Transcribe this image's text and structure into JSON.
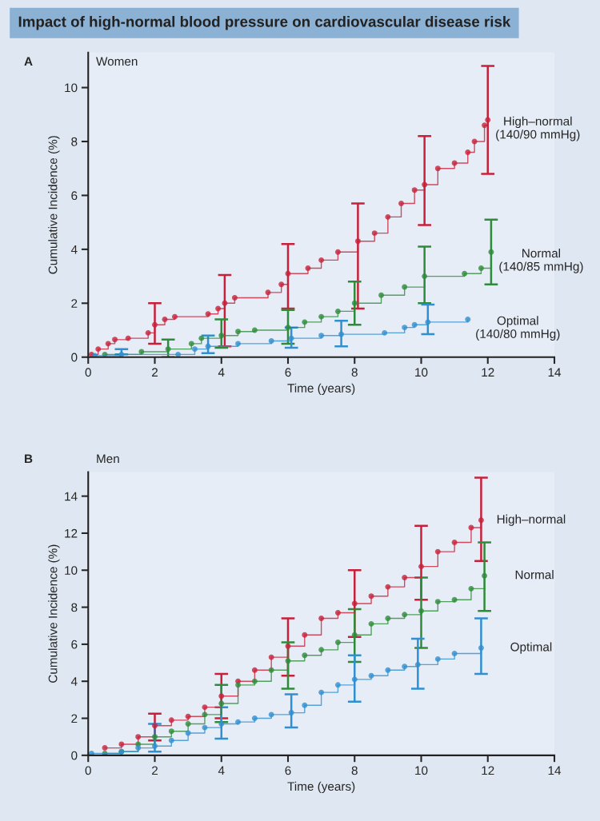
{
  "chart_data": [
    {
      "type": "step",
      "title": "Impact of high-normal blood pressure on cardiovascular disease risk",
      "subtitle": "Women",
      "annotations": [
        "A"
      ],
      "xlabel": "Time (years)",
      "ylabel": "Cumulative Incidence (%)",
      "xlim": [
        0,
        14
      ],
      "xticks": [
        0,
        2,
        4,
        6,
        8,
        10,
        12,
        14
      ],
      "ylim": [
        0,
        11.3
      ],
      "yticks": [
        0,
        2,
        4,
        6,
        8,
        10
      ],
      "grid": false,
      "legend": false,
      "marker": "circle",
      "line_style": "solid",
      "series": [
        {
          "name": "High–normal\n(140/90 mmHg)",
          "color": "#c8203a",
          "x": [
            0.1,
            0.3,
            0.6,
            0.8,
            1.2,
            1.8,
            2.0,
            2.3,
            2.6,
            3.6,
            3.9,
            4.1,
            4.4,
            5.4,
            5.8,
            6.0,
            6.6,
            7.0,
            7.5,
            8.1,
            8.6,
            9.0,
            9.4,
            9.8,
            10.1,
            10.5,
            11.0,
            11.4,
            11.6,
            11.9,
            12.0
          ],
          "values": [
            0.1,
            0.3,
            0.5,
            0.65,
            0.7,
            0.9,
            1.2,
            1.4,
            1.5,
            1.6,
            1.8,
            2.0,
            2.2,
            2.4,
            2.7,
            3.1,
            3.3,
            3.6,
            3.9,
            4.3,
            4.6,
            5.2,
            5.7,
            6.2,
            6.4,
            7.0,
            7.2,
            7.6,
            8.0,
            8.6,
            8.8
          ],
          "errors": [
            null,
            null,
            null,
            null,
            null,
            null,
            [
              0.5,
              2.0
            ],
            null,
            null,
            null,
            null,
            [
              0.4,
              3.05
            ],
            null,
            null,
            null,
            [
              1.8,
              4.2
            ],
            null,
            null,
            null,
            [
              1.8,
              5.7
            ],
            null,
            null,
            null,
            null,
            [
              4.9,
              8.2
            ],
            null,
            null,
            null,
            null,
            null,
            [
              6.8,
              10.8
            ]
          ]
        },
        {
          "name": "Normal\n(140/85 mmHg)",
          "color": "#2e8b3a",
          "x": [
            0.5,
            1.6,
            2.4,
            3.1,
            3.4,
            4.0,
            4.5,
            5.0,
            6.0,
            6.5,
            7.0,
            7.5,
            8.0,
            8.8,
            9.5,
            10.1,
            11.3,
            11.8,
            12.1
          ],
          "values": [
            0.1,
            0.2,
            0.3,
            0.5,
            0.7,
            0.8,
            0.95,
            1.0,
            1.1,
            1.3,
            1.5,
            1.7,
            2.0,
            2.3,
            2.6,
            3.0,
            3.1,
            3.3,
            3.9
          ],
          "errors": [
            null,
            null,
            [
              0.0,
              0.65
            ],
            null,
            null,
            [
              0.35,
              1.4
            ],
            null,
            null,
            [
              0.5,
              1.75
            ],
            null,
            null,
            null,
            [
              1.2,
              2.8
            ],
            null,
            null,
            [
              2.0,
              4.1
            ],
            null,
            null,
            [
              2.7,
              5.1
            ]
          ]
        },
        {
          "name": "Optimal\n(140/80 mmHg)",
          "color": "#2f8fd0",
          "x": [
            0.2,
            1.0,
            2.7,
            3.2,
            3.6,
            4.5,
            5.5,
            6.1,
            7.0,
            7.6,
            8.9,
            9.5,
            9.8,
            10.2,
            11.4
          ],
          "values": [
            0.05,
            0.1,
            0.1,
            0.3,
            0.4,
            0.5,
            0.6,
            0.7,
            0.8,
            0.85,
            0.9,
            1.1,
            1.2,
            1.3,
            1.4
          ],
          "errors": [
            null,
            [
              0.1,
              0.3
            ],
            null,
            null,
            [
              0.15,
              0.8
            ],
            null,
            null,
            [
              0.35,
              1.1
            ],
            null,
            [
              0.4,
              1.35
            ],
            null,
            null,
            null,
            [
              0.85,
              1.95
            ],
            null
          ]
        }
      ]
    },
    {
      "type": "step",
      "subtitle": "Men",
      "annotations": [
        "B"
      ],
      "xlabel": "Time (years)",
      "ylabel": "Cumulative Incidence (%)",
      "xlim": [
        0,
        14
      ],
      "xticks": [
        0,
        2,
        4,
        6,
        8,
        10,
        12,
        14
      ],
      "ylim": [
        0,
        15.3
      ],
      "yticks": [
        0,
        2,
        4,
        6,
        8,
        10,
        12,
        14
      ],
      "grid": false,
      "legend": false,
      "marker": "circle",
      "line_style": "solid",
      "series": [
        {
          "name": "High–normal",
          "color": "#c8203a",
          "x": [
            0.5,
            1.0,
            1.5,
            2.0,
            2.5,
            3.0,
            3.5,
            4.0,
            4.5,
            5.0,
            5.5,
            6.0,
            6.5,
            7.0,
            7.5,
            8.0,
            8.5,
            9.0,
            9.5,
            10.0,
            10.5,
            11.0,
            11.5,
            11.8
          ],
          "values": [
            0.4,
            0.6,
            1.0,
            1.6,
            1.9,
            2.1,
            2.6,
            3.2,
            4.0,
            4.6,
            5.3,
            5.9,
            6.5,
            7.4,
            7.7,
            8.2,
            8.6,
            9.1,
            9.6,
            10.2,
            11.0,
            11.5,
            12.3,
            12.7
          ],
          "errors": [
            null,
            null,
            null,
            [
              0.8,
              2.25
            ],
            null,
            null,
            null,
            [
              2.0,
              4.4
            ],
            null,
            null,
            null,
            [
              4.3,
              7.4
            ],
            null,
            null,
            null,
            [
              6.4,
              10.0
            ],
            null,
            null,
            null,
            [
              8.4,
              12.4
            ],
            null,
            null,
            null,
            [
              10.5,
              15.0
            ]
          ]
        },
        {
          "name": "Normal",
          "color": "#2e8b3a",
          "x": [
            0.5,
            1.0,
            1.5,
            2.0,
            2.5,
            3.0,
            3.5,
            4.0,
            4.5,
            5.0,
            5.5,
            6.0,
            6.5,
            7.0,
            7.5,
            8.0,
            8.5,
            9.0,
            9.5,
            10.0,
            10.5,
            11.0,
            11.5,
            11.9
          ],
          "values": [
            0.1,
            0.2,
            0.6,
            1.0,
            1.3,
            1.7,
            2.2,
            2.8,
            3.8,
            4.0,
            4.6,
            5.1,
            5.4,
            5.7,
            6.1,
            6.5,
            7.1,
            7.4,
            7.6,
            7.8,
            8.3,
            8.4,
            9.0,
            9.7
          ],
          "errors": [
            null,
            null,
            null,
            null,
            null,
            null,
            null,
            [
              1.8,
              3.8
            ],
            null,
            null,
            null,
            [
              3.6,
              6.1
            ],
            null,
            null,
            null,
            [
              5.05,
              7.9
            ],
            null,
            null,
            null,
            [
              5.8,
              9.6
            ],
            null,
            null,
            null,
            [
              7.8,
              11.5
            ]
          ]
        },
        {
          "name": "Optimal",
          "color": "#2f8fd0",
          "x": [
            0.1,
            1.0,
            1.5,
            2.0,
            2.5,
            3.0,
            3.5,
            4.0,
            4.5,
            5.0,
            5.5,
            6.1,
            6.5,
            7.0,
            7.5,
            8.0,
            8.5,
            9.0,
            9.5,
            9.9,
            10.5,
            11.0,
            11.8
          ],
          "values": [
            0.1,
            0.2,
            0.4,
            0.5,
            0.8,
            1.2,
            1.5,
            1.7,
            1.8,
            2.0,
            2.2,
            2.3,
            2.7,
            3.4,
            3.8,
            4.1,
            4.3,
            4.6,
            4.8,
            4.9,
            5.2,
            5.5,
            5.8
          ],
          "errors": [
            null,
            null,
            null,
            [
              0.2,
              1.7
            ],
            null,
            null,
            null,
            [
              0.9,
              2.6
            ],
            null,
            null,
            null,
            [
              1.5,
              3.3
            ],
            null,
            null,
            null,
            [
              2.9,
              5.4
            ],
            null,
            null,
            null,
            [
              3.6,
              6.3
            ],
            null,
            null,
            [
              4.4,
              7.4
            ]
          ]
        }
      ]
    }
  ]
}
